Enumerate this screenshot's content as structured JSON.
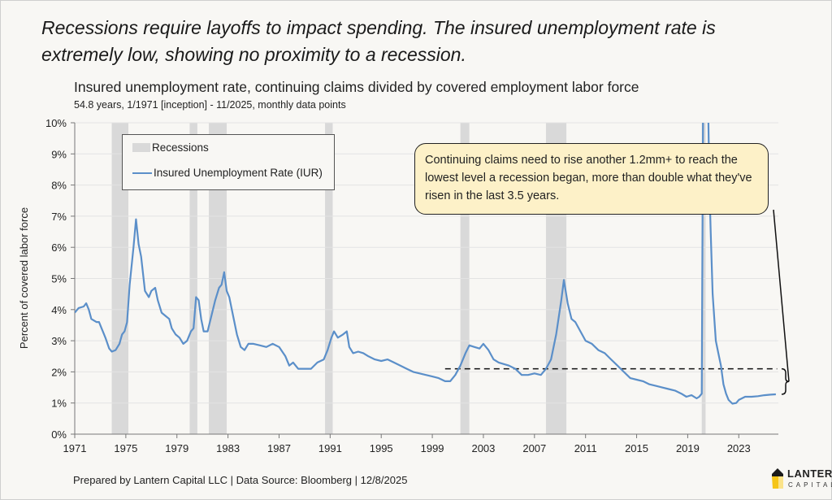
{
  "headline": "Recessions require layoffs to impact spending. The insured unemployment rate is extremely low, showing no proximity to a recession.",
  "subtitle": "Insured unemployment rate, continuing claims divided by covered employment labor force",
  "subsubtitle": "54.8 years, 1/1971 [inception] - 11/2025, monthly data points",
  "footer": "Prepared by Lantern Capital LLC | Data Source: Bloomberg | 12/8/2025",
  "logo": {
    "line1": "LANTERN",
    "line2": "CAPITAL",
    "icon": "lantern-icon"
  },
  "callout": "Continuing claims need to rise another 1.2mm+ to reach the lowest level a recession began, more than double what they've risen in the last 3.5 years.",
  "colors": {
    "line": "#5b8fc9",
    "recession": "#d9d9d9",
    "callout_bg": "#fdf1c8",
    "background": "#f8f7f4"
  },
  "chart_data": {
    "type": "line",
    "title": "Insured unemployment rate, continuing claims divided by covered employment labor force",
    "xlabel": "",
    "ylabel": "Percent of covered labor force",
    "xlim": [
      1971,
      2026.1
    ],
    "ylim": [
      0,
      10
    ],
    "x_ticks": [
      "1971",
      "1975",
      "1979",
      "1983",
      "1987",
      "1991",
      "1995",
      "1999",
      "2003",
      "2007",
      "2011",
      "2015",
      "2019",
      "2023"
    ],
    "y_ticks": [
      "0%",
      "1%",
      "2%",
      "3%",
      "4%",
      "5%",
      "6%",
      "7%",
      "8%",
      "9%",
      "10%"
    ],
    "grid": true,
    "legend": {
      "placement": "top-left",
      "entries": [
        "Recessions",
        "Insured Unemployment Rate (IUR)"
      ]
    },
    "recessions": [
      [
        1973.9,
        1975.2
      ],
      [
        1980.0,
        1980.6
      ],
      [
        1981.5,
        1982.9
      ],
      [
        1990.6,
        1991.2
      ],
      [
        2001.2,
        2001.9
      ],
      [
        2007.9,
        2009.5
      ],
      [
        2020.1,
        2020.4
      ]
    ],
    "reference_line": {
      "label": "Lowest level a recession began",
      "value": 2.1,
      "x_start": 2000.0,
      "x_end": 2026.0,
      "style": "dashed"
    },
    "series": [
      {
        "name": "Insured Unemployment Rate (IUR)",
        "points": [
          [
            1971.0,
            3.9
          ],
          [
            1971.3,
            4.05
          ],
          [
            1971.7,
            4.1
          ],
          [
            1971.9,
            4.2
          ],
          [
            1972.1,
            4.0
          ],
          [
            1972.3,
            3.7
          ],
          [
            1972.7,
            3.6
          ],
          [
            1972.9,
            3.6
          ],
          [
            1973.1,
            3.4
          ],
          [
            1973.4,
            3.1
          ],
          [
            1973.7,
            2.75
          ],
          [
            1973.9,
            2.65
          ],
          [
            1974.2,
            2.7
          ],
          [
            1974.5,
            2.9
          ],
          [
            1974.7,
            3.2
          ],
          [
            1974.9,
            3.3
          ],
          [
            1975.1,
            3.6
          ],
          [
            1975.3,
            4.8
          ],
          [
            1975.6,
            6.0
          ],
          [
            1975.8,
            6.9
          ],
          [
            1976.0,
            6.1
          ],
          [
            1976.2,
            5.7
          ],
          [
            1976.5,
            4.6
          ],
          [
            1976.8,
            4.4
          ],
          [
            1977.0,
            4.6
          ],
          [
            1977.3,
            4.7
          ],
          [
            1977.5,
            4.3
          ],
          [
            1977.8,
            3.9
          ],
          [
            1978.1,
            3.8
          ],
          [
            1978.4,
            3.7
          ],
          [
            1978.6,
            3.4
          ],
          [
            1978.9,
            3.2
          ],
          [
            1979.2,
            3.1
          ],
          [
            1979.5,
            2.9
          ],
          [
            1979.8,
            3.0
          ],
          [
            1980.1,
            3.3
          ],
          [
            1980.3,
            3.4
          ],
          [
            1980.5,
            4.4
          ],
          [
            1980.7,
            4.3
          ],
          [
            1980.9,
            3.7
          ],
          [
            1981.1,
            3.3
          ],
          [
            1981.4,
            3.3
          ],
          [
            1981.7,
            3.8
          ],
          [
            1982.0,
            4.3
          ],
          [
            1982.3,
            4.7
          ],
          [
            1982.5,
            4.8
          ],
          [
            1982.7,
            5.2
          ],
          [
            1982.9,
            4.6
          ],
          [
            1983.1,
            4.4
          ],
          [
            1983.4,
            3.8
          ],
          [
            1983.7,
            3.2
          ],
          [
            1984.0,
            2.8
          ],
          [
            1984.3,
            2.7
          ],
          [
            1984.6,
            2.9
          ],
          [
            1985.0,
            2.9
          ],
          [
            1985.5,
            2.85
          ],
          [
            1986.0,
            2.8
          ],
          [
            1986.5,
            2.9
          ],
          [
            1987.0,
            2.8
          ],
          [
            1987.5,
            2.5
          ],
          [
            1987.8,
            2.2
          ],
          [
            1988.1,
            2.3
          ],
          [
            1988.5,
            2.1
          ],
          [
            1989.0,
            2.1
          ],
          [
            1989.5,
            2.1
          ],
          [
            1990.0,
            2.3
          ],
          [
            1990.5,
            2.4
          ],
          [
            1990.8,
            2.7
          ],
          [
            1991.1,
            3.1
          ],
          [
            1991.3,
            3.3
          ],
          [
            1991.6,
            3.1
          ],
          [
            1992.0,
            3.2
          ],
          [
            1992.3,
            3.3
          ],
          [
            1992.5,
            2.8
          ],
          [
            1992.8,
            2.6
          ],
          [
            1993.2,
            2.65
          ],
          [
            1993.6,
            2.6
          ],
          [
            1994.0,
            2.5
          ],
          [
            1994.5,
            2.4
          ],
          [
            1995.0,
            2.35
          ],
          [
            1995.5,
            2.4
          ],
          [
            1996.0,
            2.3
          ],
          [
            1996.5,
            2.2
          ],
          [
            1997.0,
            2.1
          ],
          [
            1997.5,
            2.0
          ],
          [
            1998.0,
            1.95
          ],
          [
            1998.5,
            1.9
          ],
          [
            1999.0,
            1.85
          ],
          [
            1999.5,
            1.8
          ],
          [
            2000.0,
            1.7
          ],
          [
            2000.4,
            1.7
          ],
          [
            2000.8,
            1.9
          ],
          [
            2001.2,
            2.2
          ],
          [
            2001.6,
            2.6
          ],
          [
            2001.9,
            2.85
          ],
          [
            2002.3,
            2.8
          ],
          [
            2002.7,
            2.75
          ],
          [
            2003.0,
            2.9
          ],
          [
            2003.4,
            2.7
          ],
          [
            2003.8,
            2.4
          ],
          [
            2004.2,
            2.3
          ],
          [
            2004.6,
            2.25
          ],
          [
            2005.0,
            2.2
          ],
          [
            2005.5,
            2.1
          ],
          [
            2006.0,
            1.9
          ],
          [
            2006.5,
            1.9
          ],
          [
            2007.0,
            1.95
          ],
          [
            2007.5,
            1.9
          ],
          [
            2007.9,
            2.1
          ],
          [
            2008.3,
            2.4
          ],
          [
            2008.7,
            3.2
          ],
          [
            2009.1,
            4.3
          ],
          [
            2009.3,
            4.95
          ],
          [
            2009.6,
            4.2
          ],
          [
            2009.9,
            3.7
          ],
          [
            2010.2,
            3.6
          ],
          [
            2010.6,
            3.3
          ],
          [
            2011.0,
            3.0
          ],
          [
            2011.5,
            2.9
          ],
          [
            2012.0,
            2.7
          ],
          [
            2012.5,
            2.6
          ],
          [
            2013.0,
            2.4
          ],
          [
            2013.5,
            2.2
          ],
          [
            2014.0,
            2.0
          ],
          [
            2014.5,
            1.8
          ],
          [
            2015.0,
            1.75
          ],
          [
            2015.5,
            1.7
          ],
          [
            2016.0,
            1.6
          ],
          [
            2016.5,
            1.55
          ],
          [
            2017.0,
            1.5
          ],
          [
            2017.5,
            1.45
          ],
          [
            2018.0,
            1.4
          ],
          [
            2018.5,
            1.3
          ],
          [
            2018.9,
            1.2
          ],
          [
            2019.3,
            1.25
          ],
          [
            2019.7,
            1.15
          ],
          [
            2019.9,
            1.2
          ],
          [
            2020.1,
            1.3
          ],
          [
            2020.2,
            10.5
          ],
          [
            2020.6,
            10.5
          ],
          [
            2020.7,
            8.0
          ],
          [
            2020.8,
            6.5
          ],
          [
            2020.95,
            4.5
          ],
          [
            2021.2,
            3.0
          ],
          [
            2021.4,
            2.6
          ],
          [
            2021.6,
            2.2
          ],
          [
            2021.8,
            1.6
          ],
          [
            2022.0,
            1.3
          ],
          [
            2022.2,
            1.1
          ],
          [
            2022.5,
            0.98
          ],
          [
            2022.8,
            1.0
          ],
          [
            2023.0,
            1.1
          ],
          [
            2023.5,
            1.2
          ],
          [
            2024.0,
            1.2
          ],
          [
            2024.5,
            1.22
          ],
          [
            2025.0,
            1.25
          ],
          [
            2025.5,
            1.27
          ],
          [
            2025.9,
            1.28
          ]
        ]
      }
    ]
  }
}
